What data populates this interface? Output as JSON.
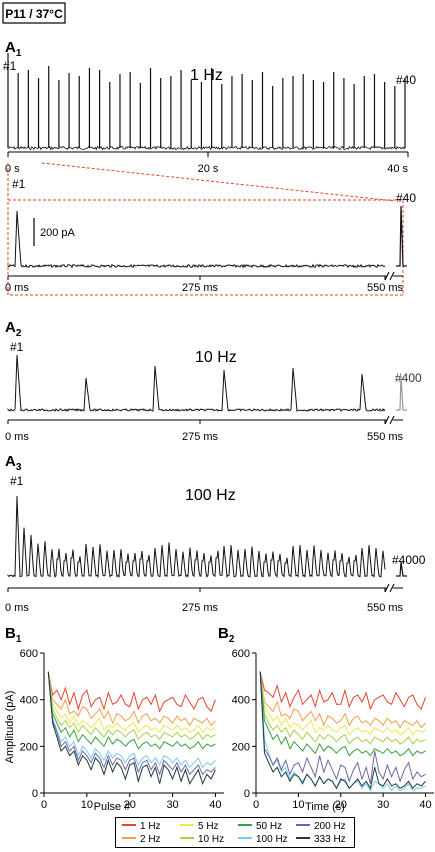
{
  "condition_badge": "P11 / 37°C",
  "panels": {
    "A1": {
      "letter": "A",
      "sub": "1",
      "freq": "1 Hz",
      "first": "#1",
      "last": "#40",
      "ticks": [
        "0 s",
        "20 s",
        "40 s"
      ]
    },
    "A1_zoom": {
      "first": "#1",
      "last": "#40",
      "scale": "200 pA",
      "ticks": [
        "0 ms",
        "275 ms",
        "550 ms"
      ]
    },
    "A2": {
      "letter": "A",
      "sub": "2",
      "freq": "10 Hz",
      "first": "#1",
      "last": "#400",
      "ticks": [
        "0 ms",
        "275 ms",
        "550 ms"
      ]
    },
    "A3": {
      "letter": "A",
      "sub": "3",
      "freq": "100 Hz",
      "first": "#1",
      "last": "#4000",
      "ticks": [
        "0 ms",
        "275 ms",
        "550 ms"
      ]
    },
    "B1": {
      "letter": "B",
      "sub": "1",
      "xlabel": "Pulse #",
      "ylabel": "Amplitude (pA)"
    },
    "B2": {
      "letter": "B",
      "sub": "2",
      "xlabel": "Time (s)",
      "ylabel": ""
    }
  },
  "colors": {
    "red": "#e8432b",
    "orange": "#f3a044",
    "yellow": "#ede84a",
    "yellowgreen": "#a5d24a",
    "green": "#37a13c",
    "lightblue": "#7ec8ec",
    "purple": "#6e66a8",
    "darkteal": "#1a3b3d",
    "trace": "#111111",
    "zoombox": "#e8432b"
  },
  "legend": [
    {
      "label": "1 Hz",
      "color": "#e8432b"
    },
    {
      "label": "5 Hz",
      "color": "#ede84a"
    },
    {
      "label": "50 Hz",
      "color": "#37a13c"
    },
    {
      "label": "200 Hz",
      "color": "#6e66a8"
    },
    {
      "label": "2 Hz",
      "color": "#f3a044"
    },
    {
      "label": "10 Hz",
      "color": "#a5d24a"
    },
    {
      "label": "100 Hz",
      "color": "#7ec8ec"
    },
    {
      "label": "333 Hz",
      "color": "#1a3b3d"
    }
  ],
  "chart_data": [
    {
      "type": "line",
      "panel": "B1",
      "xlabel": "Pulse #",
      "ylabel": "Amplitude (pA)",
      "xlim": [
        0,
        42
      ],
      "ylim": [
        0,
        600
      ],
      "xticks": [
        0,
        10,
        20,
        30,
        40
      ],
      "yticks": [
        0,
        200,
        400,
        600
      ],
      "x": [
        1,
        2,
        3,
        4,
        5,
        6,
        7,
        8,
        9,
        10,
        11,
        12,
        13,
        14,
        15,
        16,
        17,
        18,
        19,
        20,
        21,
        22,
        23,
        24,
        25,
        26,
        27,
        28,
        29,
        30,
        31,
        32,
        33,
        34,
        35,
        36,
        37,
        38,
        39,
        40
      ],
      "series": [
        {
          "name": "1 Hz",
          "values": [
            520,
            420,
            440,
            400,
            450,
            380,
            430,
            360,
            420,
            440,
            370,
            400,
            410,
            360,
            430,
            380,
            390,
            420,
            380,
            370,
            430,
            360,
            400,
            410,
            380,
            420,
            350,
            390,
            400,
            410,
            380,
            370,
            420,
            390,
            360,
            400,
            410,
            370,
            350,
            400
          ]
        },
        {
          "name": "2 Hz",
          "values": [
            520,
            400,
            380,
            360,
            400,
            340,
            350,
            330,
            370,
            360,
            320,
            340,
            360,
            320,
            350,
            300,
            340,
            330,
            310,
            320,
            350,
            300,
            330,
            340,
            310,
            320,
            300,
            330,
            320,
            300,
            330,
            310,
            320,
            290,
            320,
            310,
            300,
            320,
            290,
            310
          ]
        },
        {
          "name": "5 Hz",
          "values": [
            520,
            380,
            350,
            320,
            340,
            300,
            330,
            290,
            310,
            300,
            280,
            300,
            320,
            270,
            290,
            280,
            300,
            280,
            270,
            290,
            300,
            260,
            280,
            290,
            270,
            280,
            260,
            290,
            280,
            270,
            290,
            270,
            280,
            260,
            270,
            290,
            260,
            280,
            270,
            280
          ]
        },
        {
          "name": "10 Hz",
          "values": [
            520,
            360,
            320,
            290,
            310,
            280,
            300,
            260,
            290,
            270,
            250,
            280,
            260,
            240,
            270,
            250,
            270,
            260,
            240,
            260,
            270,
            230,
            250,
            260,
            240,
            250,
            230,
            260,
            250,
            240,
            260,
            240,
            250,
            230,
            240,
            260,
            230,
            250,
            240,
            250
          ]
        },
        {
          "name": "50 Hz",
          "values": [
            520,
            340,
            300,
            260,
            280,
            240,
            270,
            220,
            250,
            230,
            210,
            240,
            220,
            200,
            240,
            210,
            230,
            220,
            200,
            220,
            230,
            190,
            210,
            220,
            200,
            210,
            190,
            220,
            210,
            200,
            220,
            200,
            210,
            190,
            200,
            220,
            190,
            210,
            200,
            210
          ]
        },
        {
          "name": "100 Hz",
          "values": [
            520,
            320,
            270,
            220,
            240,
            200,
            220,
            160,
            200,
            180,
            150,
            190,
            170,
            140,
            180,
            150,
            170,
            160,
            130,
            160,
            170,
            120,
            150,
            160,
            130,
            150,
            120,
            160,
            150,
            130,
            150,
            120,
            140,
            110,
            130,
            150,
            110,
            130,
            120,
            140
          ]
        },
        {
          "name": "200 Hz",
          "values": [
            520,
            310,
            260,
            200,
            220,
            180,
            200,
            140,
            180,
            160,
            130,
            170,
            150,
            110,
            160,
            120,
            150,
            140,
            100,
            140,
            150,
            90,
            130,
            140,
            100,
            130,
            80,
            140,
            120,
            100,
            130,
            90,
            120,
            80,
            100,
            120,
            80,
            100,
            90,
            110
          ]
        },
        {
          "name": "333 Hz",
          "values": [
            520,
            300,
            240,
            180,
            200,
            160,
            180,
            120,
            160,
            140,
            100,
            150,
            130,
            80,
            140,
            90,
            130,
            110,
            60,
            120,
            130,
            50,
            110,
            120,
            70,
            110,
            40,
            120,
            100,
            60,
            110,
            50,
            100,
            40,
            70,
            100,
            40,
            80,
            60,
            100
          ]
        }
      ]
    },
    {
      "type": "line",
      "panel": "B2",
      "xlabel": "Time (s)",
      "ylabel": "",
      "xlim": [
        0,
        42
      ],
      "ylim": [
        0,
        600
      ],
      "xticks": [
        0,
        10,
        20,
        30,
        40
      ],
      "yticks": [
        0,
        200,
        400,
        600
      ],
      "x": [
        1,
        2,
        3,
        4,
        5,
        6,
        7,
        8,
        9,
        10,
        11,
        12,
        13,
        14,
        15,
        16,
        17,
        18,
        19,
        20,
        21,
        22,
        23,
        24,
        25,
        26,
        27,
        28,
        29,
        30,
        31,
        32,
        33,
        34,
        35,
        36,
        37,
        38,
        39,
        40
      ],
      "series": [
        {
          "name": "1 Hz",
          "values": [
            520,
            440,
            430,
            410,
            460,
            390,
            430,
            370,
            410,
            440,
            380,
            400,
            420,
            370,
            440,
            390,
            400,
            430,
            380,
            380,
            440,
            370,
            410,
            420,
            390,
            430,
            360,
            400,
            410,
            420,
            390,
            380,
            430,
            400,
            370,
            410,
            420,
            380,
            360,
            410
          ]
        },
        {
          "name": "2 Hz",
          "values": [
            520,
            390,
            370,
            350,
            390,
            330,
            340,
            320,
            360,
            350,
            310,
            330,
            350,
            310,
            340,
            290,
            330,
            320,
            300,
            310,
            340,
            290,
            320,
            330,
            300,
            310,
            290,
            320,
            310,
            290,
            320,
            300,
            310,
            280,
            310,
            300,
            290,
            310,
            280,
            300
          ]
        },
        {
          "name": "5 Hz",
          "values": [
            520,
            370,
            340,
            310,
            330,
            290,
            320,
            280,
            300,
            290,
            270,
            290,
            310,
            260,
            280,
            270,
            290,
            270,
            260,
            280,
            290,
            250,
            270,
            280,
            260,
            270,
            250,
            280,
            270,
            260,
            280,
            260,
            270,
            250,
            260,
            280,
            250,
            270,
            260,
            270
          ]
        },
        {
          "name": "10 Hz",
          "values": [
            520,
            340,
            300,
            270,
            290,
            260,
            280,
            240,
            270,
            250,
            230,
            260,
            240,
            220,
            250,
            230,
            250,
            240,
            220,
            240,
            250,
            210,
            230,
            240,
            220,
            230,
            210,
            240,
            230,
            220,
            240,
            220,
            230,
            210,
            220,
            240,
            210,
            230,
            220,
            230
          ]
        },
        {
          "name": "50 Hz",
          "values": [
            520,
            310,
            270,
            230,
            250,
            210,
            240,
            190,
            220,
            200,
            180,
            210,
            190,
            170,
            210,
            180,
            200,
            190,
            170,
            190,
            200,
            160,
            180,
            190,
            170,
            180,
            160,
            190,
            180,
            170,
            190,
            170,
            180,
            160,
            170,
            190,
            160,
            180,
            170,
            180
          ]
        },
        {
          "name": "100 Hz",
          "values": [
            520,
            230,
            170,
            120,
            140,
            90,
            110,
            60,
            90,
            70,
            50,
            80,
            60,
            30,
            70,
            40,
            60,
            50,
            20,
            50,
            60,
            20,
            40,
            50,
            20,
            40,
            10,
            50,
            40,
            20,
            40,
            10,
            30,
            10,
            20,
            40,
            10,
            20,
            20,
            30
          ]
        },
        {
          "name": "200 Hz",
          "values": [
            520,
            190,
            160,
            120,
            150,
            100,
            140,
            80,
            120,
            130,
            90,
            150,
            110,
            70,
            160,
            90,
            140,
            100,
            60,
            120,
            110,
            50,
            100,
            130,
            60,
            110,
            40,
            180,
            90,
            60,
            120,
            70,
            110,
            50,
            100,
            130,
            60,
            90,
            70,
            80
          ]
        },
        {
          "name": "333 Hz",
          "values": [
            520,
            170,
            130,
            90,
            110,
            70,
            90,
            50,
            80,
            70,
            40,
            80,
            60,
            30,
            70,
            40,
            60,
            50,
            20,
            60,
            50,
            20,
            40,
            60,
            30,
            50,
            20,
            110,
            40,
            30,
            60,
            30,
            40,
            20,
            30,
            50,
            20,
            40,
            30,
            50
          ]
        }
      ]
    }
  ]
}
